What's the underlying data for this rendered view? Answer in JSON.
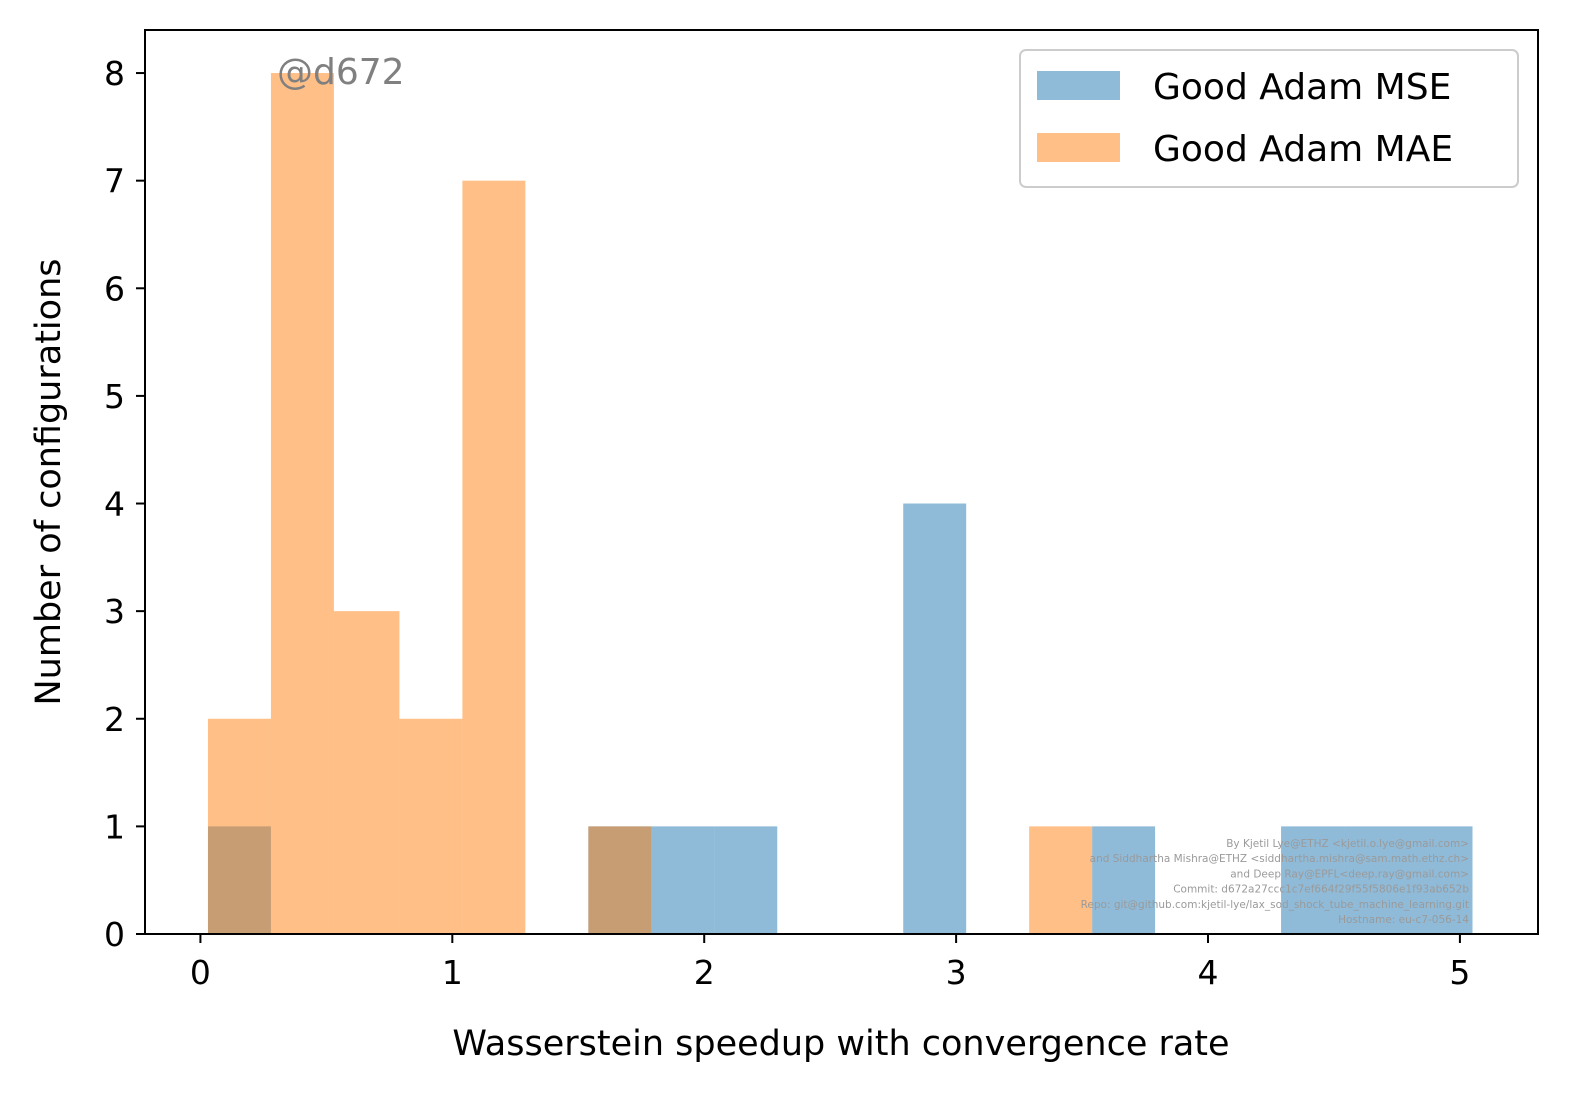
{
  "chart_data": {
    "type": "bar",
    "xlabel": "Wasserstein speedup with convergence rate",
    "ylabel": "Number of configurations",
    "xlim": [
      -0.22,
      5.31
    ],
    "ylim": [
      0,
      8.4
    ],
    "x_ticks": [
      0,
      1,
      2,
      3,
      4,
      5
    ],
    "y_ticks": [
      0,
      1,
      2,
      3,
      4,
      5,
      6,
      7,
      8
    ],
    "grid": false,
    "legend_position": "top-right",
    "series": [
      {
        "name": "Good Adam MSE",
        "color": "#1f77b4",
        "opacity": 0.5,
        "bins": [
          {
            "x0": 0.03,
            "x1": 0.28,
            "count": 1
          },
          {
            "x0": 0.28,
            "x1": 0.53,
            "count": 0
          },
          {
            "x0": 0.53,
            "x1": 0.79,
            "count": 0
          },
          {
            "x0": 0.79,
            "x1": 1.04,
            "count": 0
          },
          {
            "x0": 1.04,
            "x1": 1.29,
            "count": 0
          },
          {
            "x0": 1.29,
            "x1": 1.54,
            "count": 0
          },
          {
            "x0": 1.54,
            "x1": 1.79,
            "count": 1
          },
          {
            "x0": 1.79,
            "x1": 2.04,
            "count": 1
          },
          {
            "x0": 2.04,
            "x1": 2.29,
            "count": 1
          },
          {
            "x0": 2.29,
            "x1": 2.54,
            "count": 0
          },
          {
            "x0": 2.54,
            "x1": 2.79,
            "count": 0
          },
          {
            "x0": 2.79,
            "x1": 3.04,
            "count": 4
          },
          {
            "x0": 3.04,
            "x1": 3.29,
            "count": 0
          },
          {
            "x0": 3.29,
            "x1": 3.54,
            "count": 0
          },
          {
            "x0": 3.54,
            "x1": 3.79,
            "count": 1
          },
          {
            "x0": 3.79,
            "x1": 4.04,
            "count": 0
          },
          {
            "x0": 4.04,
            "x1": 4.29,
            "count": 0
          },
          {
            "x0": 4.29,
            "x1": 4.54,
            "count": 1
          },
          {
            "x0": 4.54,
            "x1": 4.79,
            "count": 1
          },
          {
            "x0": 4.79,
            "x1": 5.05,
            "count": 1
          }
        ]
      },
      {
        "name": "Good Adam MAE",
        "color": "#ff7f0e",
        "opacity": 0.5,
        "bins": [
          {
            "x0": 0.03,
            "x1": 0.28,
            "count": 2
          },
          {
            "x0": 0.28,
            "x1": 0.53,
            "count": 8
          },
          {
            "x0": 0.53,
            "x1": 0.79,
            "count": 3
          },
          {
            "x0": 0.79,
            "x1": 1.04,
            "count": 2
          },
          {
            "x0": 1.04,
            "x1": 1.29,
            "count": 7
          },
          {
            "x0": 1.29,
            "x1": 1.54,
            "count": 0
          },
          {
            "x0": 1.54,
            "x1": 1.79,
            "count": 1
          },
          {
            "x0": 1.79,
            "x1": 2.04,
            "count": 0
          },
          {
            "x0": 2.04,
            "x1": 2.29,
            "count": 0
          },
          {
            "x0": 2.29,
            "x1": 2.54,
            "count": 0
          },
          {
            "x0": 2.54,
            "x1": 2.79,
            "count": 0
          },
          {
            "x0": 2.79,
            "x1": 3.04,
            "count": 0
          },
          {
            "x0": 3.04,
            "x1": 3.29,
            "count": 0
          },
          {
            "x0": 3.29,
            "x1": 3.54,
            "count": 1
          },
          {
            "x0": 3.54,
            "x1": 3.79,
            "count": 0
          }
        ]
      }
    ],
    "annotations": {
      "watermark": "@d672",
      "credits": [
        "By Kjetil Lye@ETHZ <kjetil.o.lye@gmail.com>",
        "and Siddhartha Mishra@ETHZ <siddhartha.mishra@sam.math.ethz.ch>",
        "and Deep Ray@EPFL<deep.ray@gmail.com>",
        "Commit: d672a27ccc1c7ef664f29f55f5806e1f93ab652b",
        "Repo: git@github.com:kjetil-lye/lax_sod_shock_tube_machine_learning.git",
        "Hostname: eu-c7-056-14"
      ]
    }
  }
}
